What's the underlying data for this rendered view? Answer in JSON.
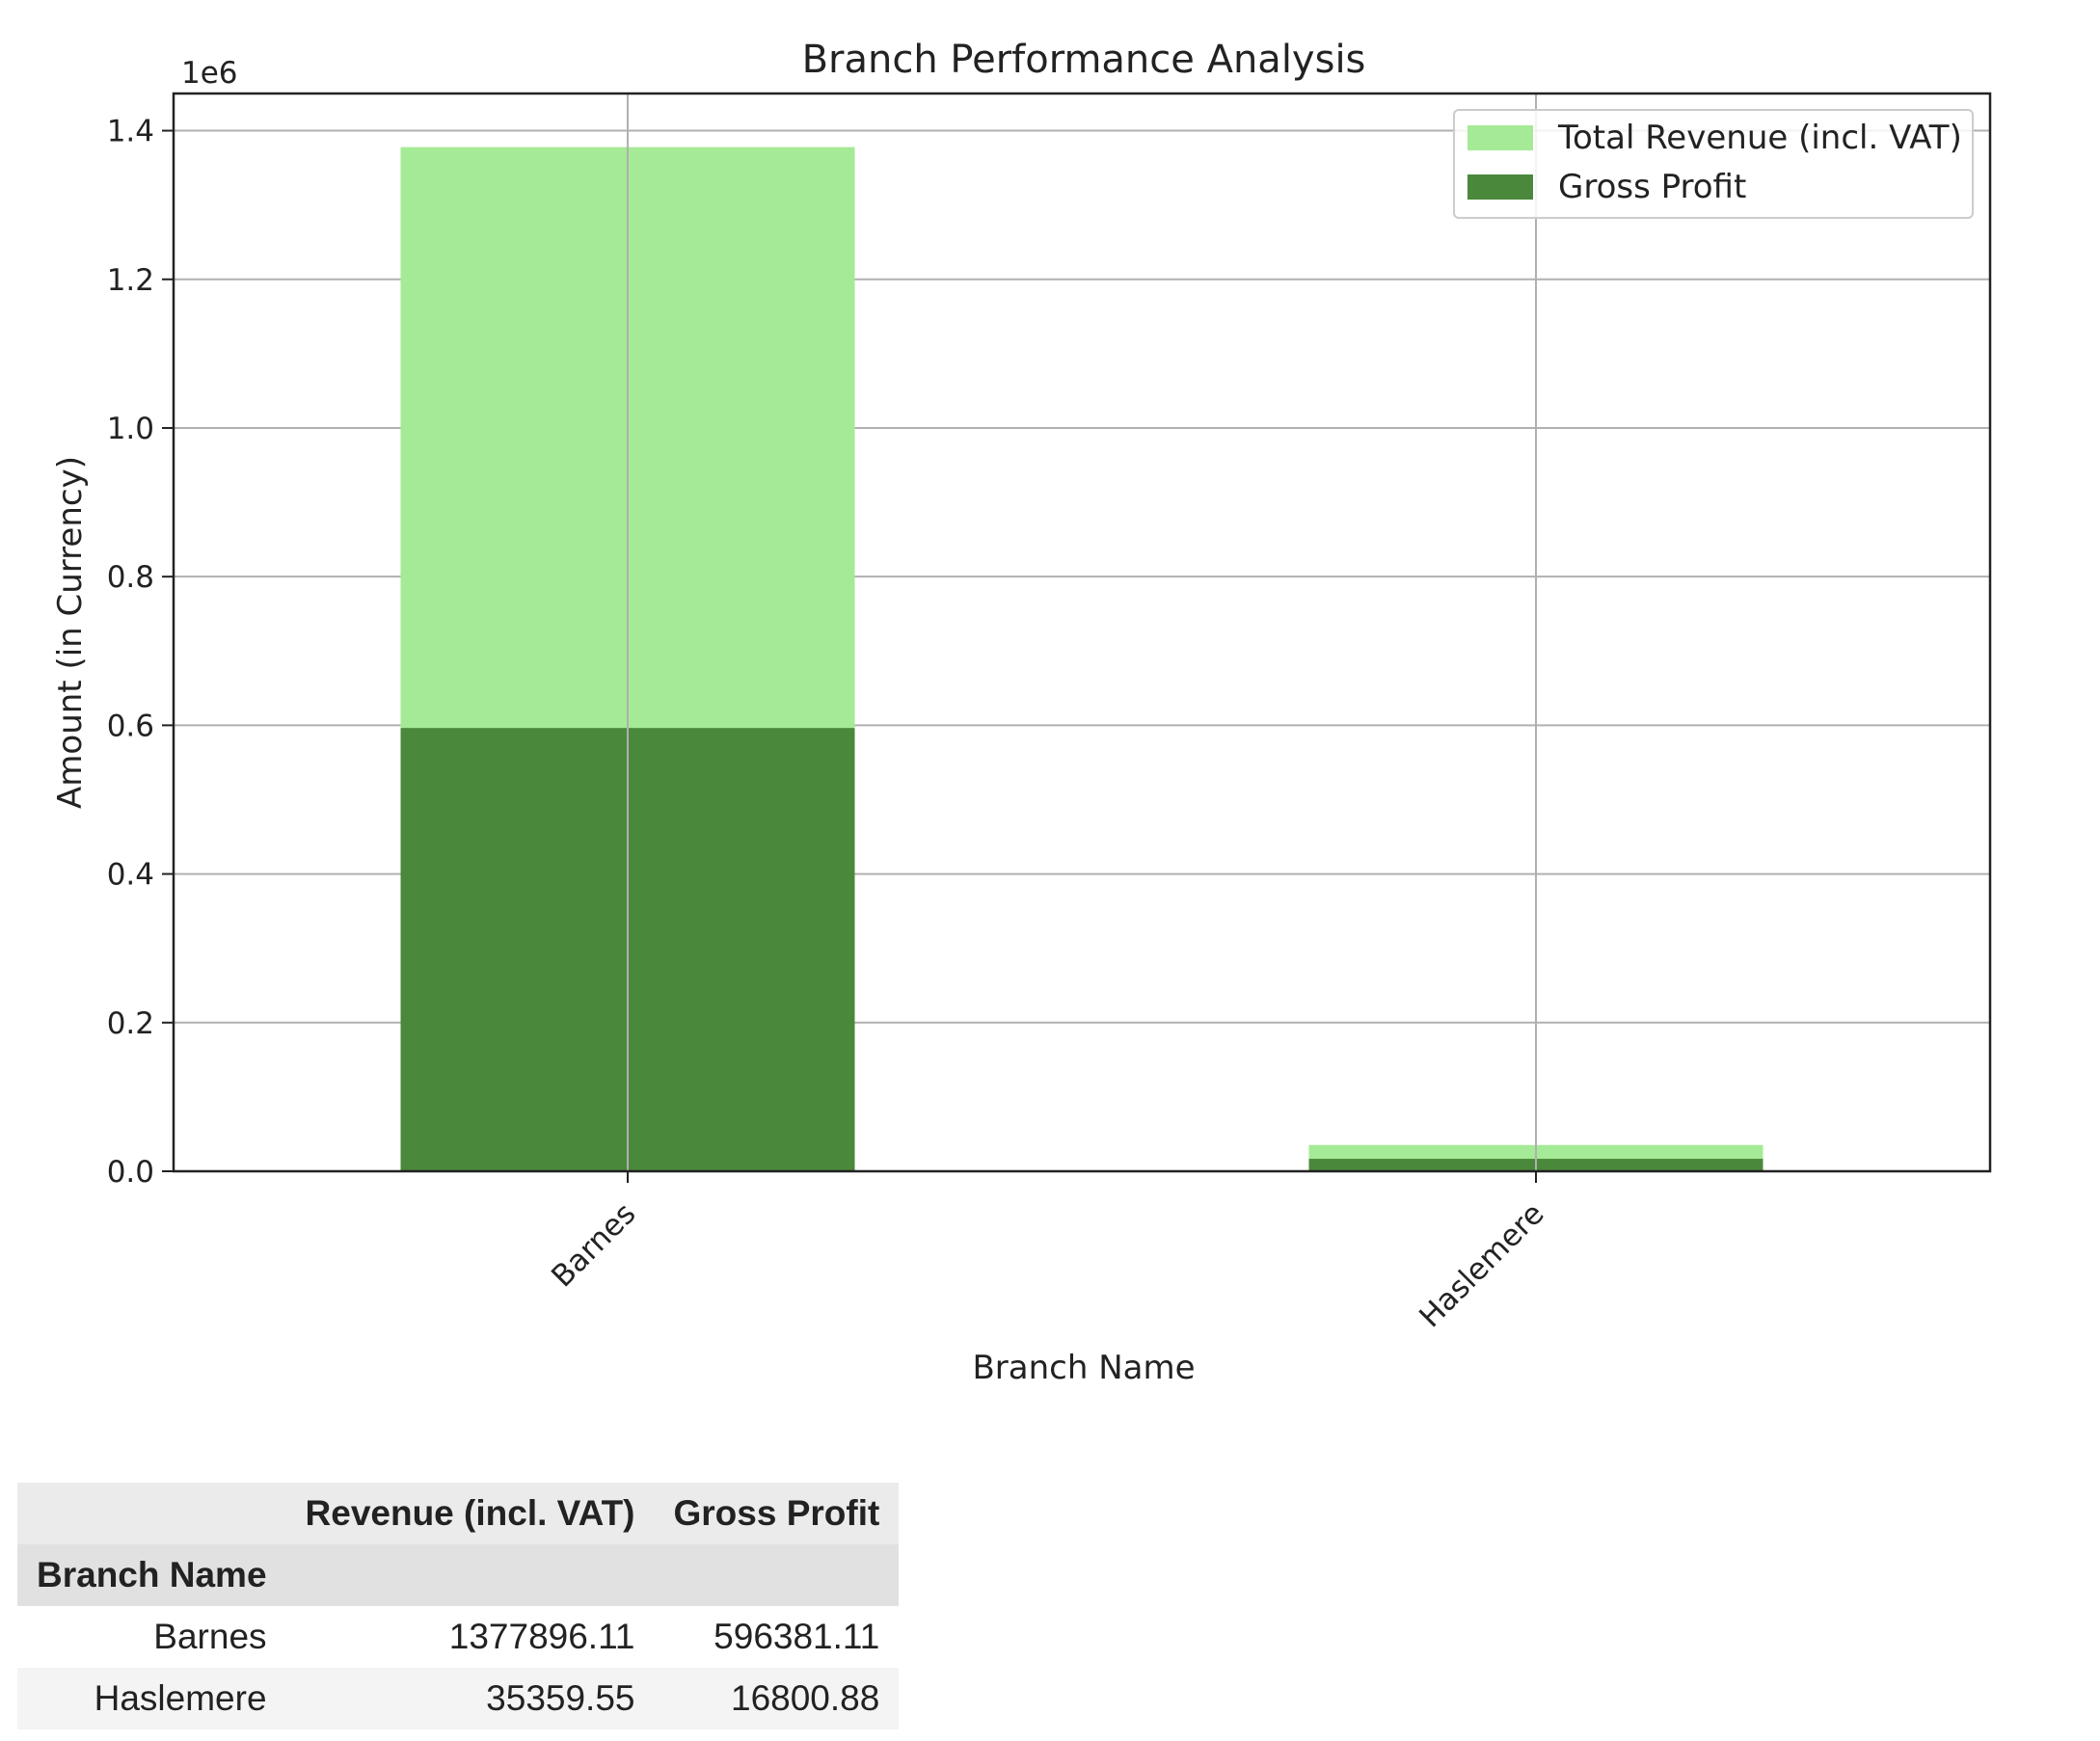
{
  "chart_data": {
    "type": "bar",
    "title": "Branch Performance Analysis",
    "xlabel": "Branch Name",
    "ylabel": "Amount (in Currency)",
    "y_offset_label": "1e6",
    "categories": [
      "Barnes",
      "Haslemere"
    ],
    "series": [
      {
        "name": "Total Revenue (incl. VAT)",
        "values": [
          1377896.11,
          35359.55
        ],
        "color": "#a5ea96"
      },
      {
        "name": "Gross Profit",
        "values": [
          596381.11,
          16800.88
        ],
        "color": "#4a883b"
      }
    ],
    "ylim": [
      0,
      1450000
    ],
    "yticks": [
      0,
      200000,
      400000,
      600000,
      800000,
      1000000,
      1200000,
      1400000
    ],
    "ytick_labels": [
      "0.0",
      "0.2",
      "0.4",
      "0.6",
      "0.8",
      "1.0",
      "1.2",
      "1.4"
    ],
    "grid": true,
    "legend_position": "top-right",
    "overlay": true
  },
  "table": {
    "columns": [
      "Revenue (incl. VAT)",
      "Gross Profit"
    ],
    "index_name": "Branch Name",
    "rows": [
      {
        "index": "Barnes",
        "values": [
          "1377896.11",
          "596381.11"
        ]
      },
      {
        "index": "Haslemere",
        "values": [
          "35359.55",
          "16800.88"
        ]
      }
    ]
  }
}
